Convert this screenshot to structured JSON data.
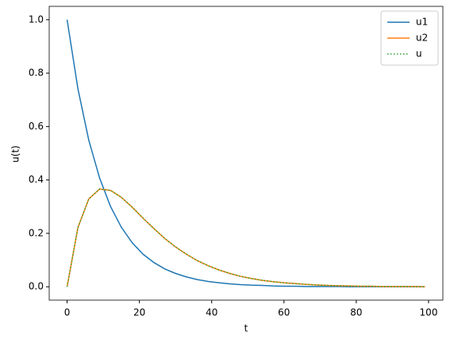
{
  "chart_data": {
    "type": "line",
    "x_label": "t",
    "y_label": "u(t)",
    "x": [
      0,
      3,
      6,
      9,
      12,
      15,
      18,
      21,
      24,
      27,
      30,
      33,
      36,
      39,
      42,
      45,
      48,
      51,
      54,
      57,
      60,
      63,
      66,
      69,
      72,
      75,
      78,
      81,
      84,
      87,
      90,
      93,
      96,
      99
    ],
    "series": [
      {
        "name": "u1",
        "color": "#1f77b4",
        "linestyle": "solid",
        "values": [
          1.0,
          0.741,
          0.549,
          0.407,
          0.301,
          0.223,
          0.165,
          0.122,
          0.091,
          0.067,
          0.05,
          0.037,
          0.027,
          0.02,
          0.015,
          0.011,
          0.008,
          0.006,
          0.005,
          0.003,
          0.002,
          0.002,
          0.001,
          0.001,
          0.001,
          0.001,
          0.0,
          0.0,
          0.0,
          0.0,
          0.0,
          0.0,
          0.0,
          0.0
        ]
      },
      {
        "name": "u2",
        "color": "#ff7f0e",
        "linestyle": "solid",
        "values": [
          0.0,
          0.222,
          0.329,
          0.366,
          0.361,
          0.335,
          0.298,
          0.257,
          0.218,
          0.181,
          0.149,
          0.122,
          0.098,
          0.079,
          0.063,
          0.05,
          0.039,
          0.031,
          0.024,
          0.019,
          0.015,
          0.012,
          0.009,
          0.007,
          0.005,
          0.004,
          0.003,
          0.002,
          0.002,
          0.001,
          0.001,
          0.001,
          0.001,
          0.0
        ]
      },
      {
        "name": "u",
        "color": "#2ca02c",
        "linestyle": "dotted",
        "values": [
          0.0,
          0.222,
          0.329,
          0.366,
          0.361,
          0.335,
          0.298,
          0.257,
          0.218,
          0.181,
          0.149,
          0.122,
          0.098,
          0.079,
          0.063,
          0.05,
          0.039,
          0.031,
          0.024,
          0.019,
          0.015,
          0.012,
          0.009,
          0.007,
          0.005,
          0.004,
          0.003,
          0.002,
          0.002,
          0.001,
          0.001,
          0.001,
          0.001,
          0.0
        ]
      }
    ],
    "xlim": [
      -4.95,
      103.95
    ],
    "ylim": [
      -0.05,
      1.05
    ],
    "xticks": [
      0,
      20,
      40,
      60,
      80,
      100
    ],
    "yticks": [
      {
        "value": 0,
        "label": "0.0"
      },
      {
        "value": 0.2,
        "label": "0.2"
      },
      {
        "value": 0.4,
        "label": "0.4"
      },
      {
        "value": 0.6,
        "label": "0.6"
      },
      {
        "value": 0.8,
        "label": "0.8"
      },
      {
        "value": 1.0,
        "label": "1.0"
      }
    ],
    "legend": "upper right"
  }
}
